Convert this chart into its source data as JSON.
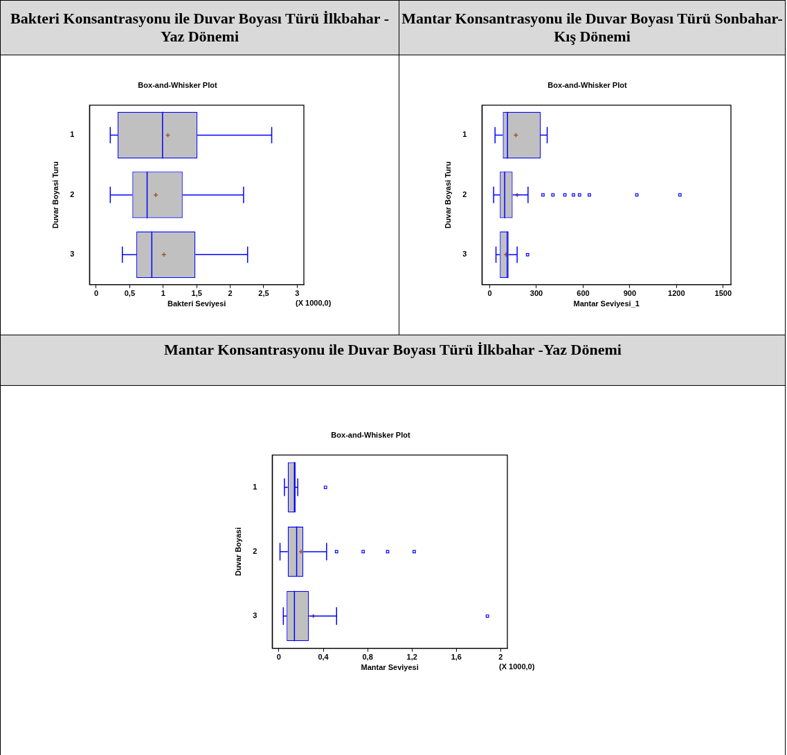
{
  "chart_data": [
    {
      "type": "box",
      "title": "Bakteri Konsantrasyonu ile Duvar Boyası Türü İlkbahar -Yaz Dönemi",
      "subtitle": "Box-and-Whisker Plot",
      "xlabel": "Bakteri Seviyesi",
      "ylabel": "Duvar Boyasi Turu",
      "annotations": [
        "(X 1000,0)"
      ],
      "categories": [
        "1",
        "2",
        "3"
      ],
      "orientation": "horizontal",
      "boxes": [
        {
          "low": 0.21,
          "q1": 0.32,
          "median": 0.99,
          "q3": 1.51,
          "high": 2.62,
          "mean": 1.07
        },
        {
          "low": 0.21,
          "q1": 0.54,
          "median": 0.76,
          "q3": 1.29,
          "high": 2.2,
          "mean": 0.89
        },
        {
          "low": 0.39,
          "q1": 0.6,
          "median": 0.83,
          "q3": 1.48,
          "high": 2.26,
          "mean": 1.01
        }
      ],
      "xlim": [
        -0.1,
        3.1
      ],
      "xticks": [
        0,
        {
          "value": 0.5,
          "label": "0,5"
        },
        1,
        {
          "value": 1.5,
          "label": "1,5"
        },
        2,
        {
          "value": 2.5,
          "label": "2,5"
        },
        3
      ]
    },
    {
      "type": "box",
      "title": "Mantar Konsantrasyonu ile Duvar Boyası Türü Sonbahar-Kış Dönemi",
      "subtitle": "Box-and-Whisker Plot",
      "xlabel": "Mantar Seviyesi_1",
      "ylabel": "Duvar Boyasi Turu",
      "categories": [
        "1",
        "2",
        "3"
      ],
      "orientation": "horizontal",
      "boxes": [
        {
          "low": 34,
          "q1": 84,
          "median": 114,
          "q3": 327,
          "high": 369,
          "mean": 168
        },
        {
          "low": 25,
          "q1": 65,
          "median": 96,
          "q3": 147,
          "high": 246,
          "mean": 176,
          "outliers": [
            342,
            406,
            483,
            538,
            577,
            640,
            945,
            1222
          ]
        },
        {
          "low": 40,
          "q1": 65,
          "median": 112,
          "q3": 121,
          "high": 176,
          "mean": 104,
          "outliers": [
            243
          ]
        }
      ],
      "xlim": [
        -50,
        1550
      ],
      "xticks": [
        0,
        300,
        600,
        900,
        1200,
        1500
      ]
    },
    {
      "type": "box",
      "title": "Mantar Konsantrasyonu ile Duvar Boyası Türü İlkbahar -Yaz Dönemi",
      "subtitle": "Box-and-Whisker Plot",
      "xlabel": "Mantar Seviyesi",
      "ylabel": "Duvar Boyasi",
      "annotations": [
        "(X 1000,0)"
      ],
      "categories": [
        "1",
        "2",
        "3"
      ],
      "orientation": "horizontal",
      "boxes": [
        {
          "low": 0.05,
          "q1": 0.08,
          "median": 0.14,
          "q3": 0.15,
          "high": 0.17,
          "outliers": [
            0.42
          ]
        },
        {
          "low": 0.01,
          "q1": 0.08,
          "median": 0.16,
          "q3": 0.22,
          "high": 0.43,
          "mean": 0.2,
          "outliers": [
            0.52,
            0.76,
            0.98,
            1.22
          ]
        },
        {
          "low": 0.04,
          "q1": 0.07,
          "median": 0.14,
          "q3": 0.27,
          "high": 0.52,
          "mean": 0.31,
          "outliers": [
            1.88
          ]
        }
      ],
      "xlim": [
        -0.06,
        2.06
      ],
      "xticks": [
        0,
        {
          "value": 0.4,
          "label": "0,4"
        },
        {
          "value": 0.8,
          "label": "0,8"
        },
        {
          "value": 1.2,
          "label": "1,2"
        },
        {
          "value": 1.6,
          "label": "1,6"
        },
        2
      ]
    }
  ]
}
